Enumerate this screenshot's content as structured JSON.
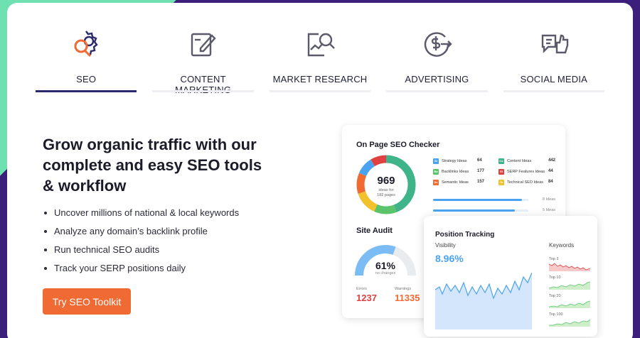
{
  "tabs": [
    {
      "label": "SEO",
      "icon": "seo-gear-icon",
      "active": true
    },
    {
      "label": "CONTENT MARKETING",
      "icon": "content-edit-icon",
      "active": false
    },
    {
      "label": "MARKET RESEARCH",
      "icon": "market-research-icon",
      "active": false
    },
    {
      "label": "ADVERTISING",
      "icon": "advertising-dollar-icon",
      "active": false
    },
    {
      "label": "SOCIAL MEDIA",
      "icon": "social-like-icon",
      "active": false
    }
  ],
  "hero": {
    "headline": "Grow organic traffic with our complete and easy SEO tools & workflow",
    "bullets": [
      "Uncover millions of national & local keywords",
      "Analyze any domain’s backlink profile",
      "Run technical SEO audits",
      "Track your SERP positions daily"
    ],
    "cta": "Try SEO Toolkit"
  },
  "on_page": {
    "title": "On Page SEO Checker",
    "donut_value": "969",
    "donut_sub1": "ideas for",
    "donut_sub2": "182 pages",
    "ideas": [
      {
        "tag": "St",
        "label": "Strategy Ideas",
        "value": "64",
        "color": "#4aa3f0"
      },
      {
        "tag": "Ba",
        "label": "Backlinks Ideas",
        "value": "177",
        "color": "#5ac46b"
      },
      {
        "tag": "Se",
        "label": "Semantic Ideas",
        "value": "157",
        "color": "#f06a33"
      },
      {
        "tag": "Co",
        "label": "Content Ideas",
        "value": "442",
        "color": "#3fb38a"
      },
      {
        "tag": "Sf",
        "label": "SERP Features Ideas",
        "value": "44",
        "color": "#e04040"
      },
      {
        "tag": "Te",
        "label": "Technical SEO Ideas",
        "value": "84",
        "color": "#f2c12e"
      }
    ],
    "bars": [
      {
        "label": "8 Ideas",
        "fill": 0.93
      },
      {
        "label": "5 Ideas",
        "fill": 0.86
      }
    ]
  },
  "site_audit": {
    "title": "Site Audit",
    "percent": "61%",
    "percent_value": 0.61,
    "sub": "no changes",
    "errors_label": "Errors",
    "errors": "1237",
    "warnings_label": "Warnings",
    "warnings": "11335"
  },
  "position_tracking": {
    "title": "Position Tracking",
    "visibility_label": "Visibility",
    "visibility": "8.96%",
    "keywords_label": "Keywords",
    "keyword_rows": [
      "Top 3",
      "Top 10",
      "Top 20",
      "Top 100"
    ]
  },
  "colors": {
    "accent": "#f06a33",
    "brand_dark": "#3b1f7a",
    "blue": "#4aa3f0",
    "red": "#e04040"
  }
}
